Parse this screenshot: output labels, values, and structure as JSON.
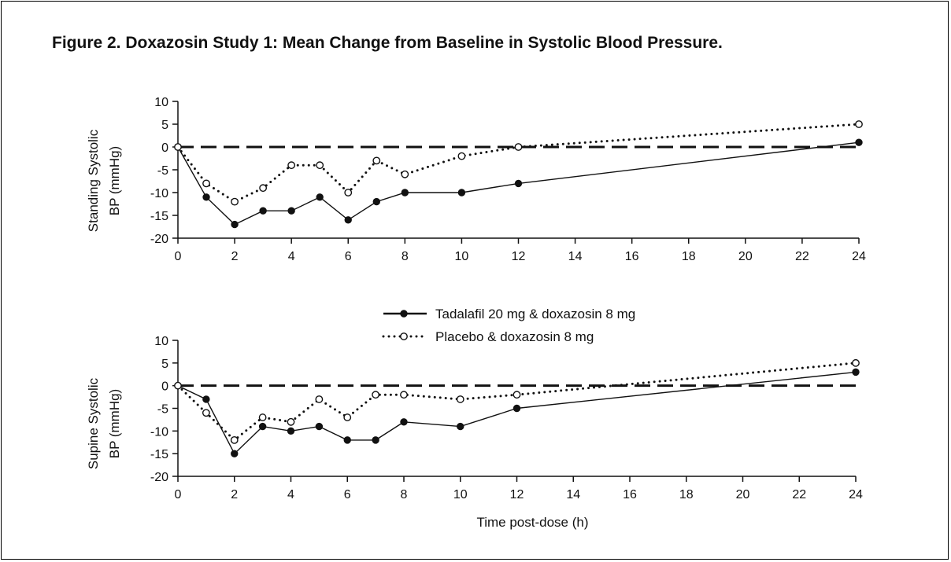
{
  "figure_title": "Figure 2. Doxazosin Study 1: Mean Change from Baseline in Systolic Blood Pressure.",
  "colors": {
    "line": "#111111",
    "background": "#ffffff"
  },
  "legend": {
    "placement": "between-panels-center",
    "entries": [
      {
        "label": "Tadalafil 20 mg & doxazosin 8 mg",
        "style": "solid",
        "marker": "filled-circle"
      },
      {
        "label": "Placebo & doxazosin 8 mg",
        "style": "dotted",
        "marker": "open-circle"
      }
    ]
  },
  "chart_data": [
    {
      "type": "line",
      "ylabel_lines": [
        "Standing Systolic",
        "BP (mmHg)"
      ],
      "xlabel": "",
      "xlim": [
        0,
        24
      ],
      "ylim": [
        -20,
        10
      ],
      "xticks": [
        0,
        2,
        4,
        6,
        8,
        10,
        12,
        14,
        16,
        18,
        20,
        22,
        24
      ],
      "yticks": [
        10,
        5,
        0,
        -5,
        -10,
        -15,
        -20
      ],
      "reference_line": {
        "y": 0,
        "style": "dashed"
      },
      "x": [
        0,
        1,
        2,
        3,
        4,
        5,
        6,
        7,
        8,
        10,
        12,
        24
      ],
      "series": [
        {
          "name": "Tadalafil 20 mg & doxazosin 8 mg",
          "values": [
            0,
            -11,
            -17,
            -14,
            -14,
            -11,
            -16,
            -12,
            -10,
            -10,
            -8,
            1
          ]
        },
        {
          "name": "Placebo & doxazosin 8 mg",
          "values": [
            0,
            -8,
            -12,
            -9,
            -4,
            -4,
            -10,
            -3,
            -6,
            -2,
            0,
            5
          ]
        }
      ]
    },
    {
      "type": "line",
      "ylabel_lines": [
        "Supine Systolic",
        "BP (mmHg)"
      ],
      "xlabel": "Time post-dose (h)",
      "xlim": [
        0,
        24
      ],
      "ylim": [
        -20,
        10
      ],
      "xticks": [
        0,
        2,
        4,
        6,
        8,
        10,
        12,
        14,
        16,
        18,
        20,
        22,
        24
      ],
      "yticks": [
        10,
        5,
        0,
        -5,
        -10,
        -15,
        -20
      ],
      "reference_line": {
        "y": 0,
        "style": "dashed"
      },
      "x": [
        0,
        1,
        2,
        3,
        4,
        5,
        6,
        7,
        8,
        10,
        12,
        24
      ],
      "series": [
        {
          "name": "Tadalafil 20 mg & doxazosin 8 mg",
          "values": [
            0,
            -3,
            -15,
            -9,
            -10,
            -9,
            -12,
            -12,
            -8,
            -9,
            -5,
            3
          ]
        },
        {
          "name": "Placebo & doxazosin 8 mg",
          "values": [
            0,
            -6,
            -12,
            -7,
            -8,
            -3,
            -7,
            -2,
            -2,
            -3,
            -2,
            5
          ]
        }
      ]
    }
  ]
}
